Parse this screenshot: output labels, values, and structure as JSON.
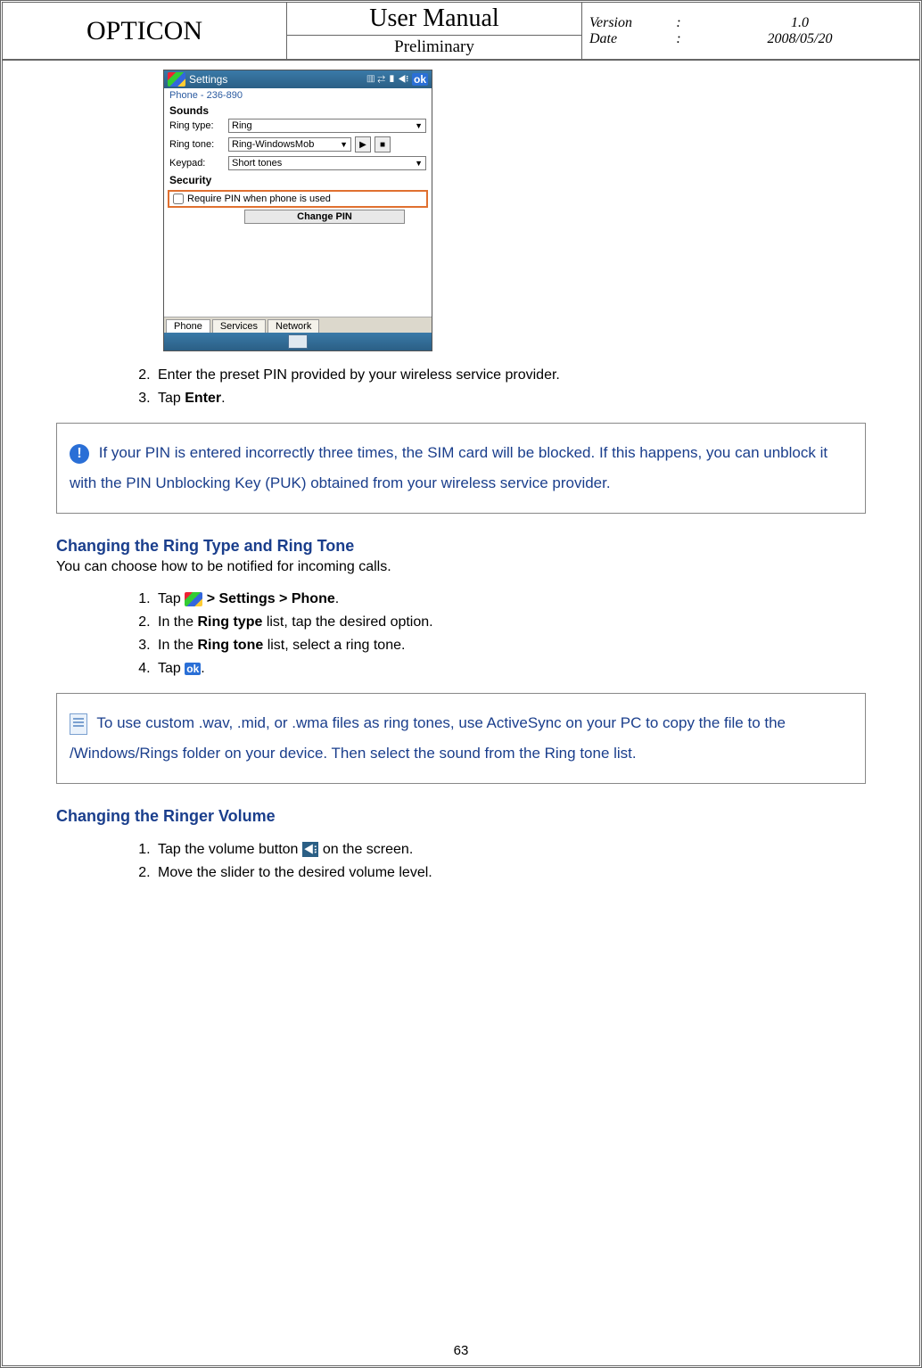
{
  "header": {
    "brand": "OPTICON",
    "title": "User Manual",
    "subtitle": "Preliminary",
    "version_label": "Version",
    "version_value": "1.0",
    "date_label": "Date",
    "date_value": "2008/05/20",
    "colon": ":"
  },
  "screenshot": {
    "title": "Settings",
    "ok": "ok",
    "subheader": "Phone - 236-890",
    "section_sounds": "Sounds",
    "ring_type_label": "Ring type:",
    "ring_type_value": "Ring",
    "ring_tone_label": "Ring tone:",
    "ring_tone_value": "Ring-WindowsMob",
    "play": "▶",
    "stop": "■",
    "keypad_label": "Keypad:",
    "keypad_value": "Short tones",
    "section_security": "Security",
    "require_pin": "Require PIN when phone is used",
    "change_pin": "Change PIN",
    "tabs": [
      "Phone",
      "Services",
      "Network"
    ]
  },
  "steps_a": {
    "start": 2,
    "items": [
      "Enter the preset PIN provided by your wireless service provider.",
      "Tap "
    ],
    "enter_bold": "Enter"
  },
  "notice1": "If your PIN is entered incorrectly three times, the SIM card will be blocked. If this happens, you can unblock it with the PIN Unblocking Key (PUK) obtained from your wireless service provider.",
  "section_ringtype": "Changing the Ring Type and Ring Tone",
  "lead_ringtype": "You can choose how to be notified for incoming calls.",
  "steps_b": {
    "items": [
      {
        "pre": "Tap ",
        "mid": " > Settings > Phone",
        "post": "."
      },
      {
        "pre": "In the ",
        "bold": "Ring type",
        "post": " list, tap the desired option."
      },
      {
        "pre": "In the ",
        "bold": "Ring tone",
        "post": " list, select a ring tone."
      },
      {
        "pre": "Tap ",
        "ok": "ok",
        "post": "."
      }
    ]
  },
  "notice2": "To use custom .wav, .mid, or .wma files as ring tones, use ActiveSync on your PC to copy the file to the /Windows/Rings folder on your device. Then select the sound from the Ring tone list.",
  "section_ringer": "Changing the Ringer Volume",
  "steps_c": {
    "items": [
      {
        "pre": "Tap the volume button ",
        "post": " on the screen."
      },
      {
        "text": "Move the slider to the desired volume level."
      }
    ]
  },
  "page_number": "63",
  "colors": {
    "link_blue": "#1a3e8c",
    "highlight_border": "#e07030",
    "titlebar_grad_top": "#3a7aa8",
    "titlebar_grad_bot": "#2b5f85"
  }
}
